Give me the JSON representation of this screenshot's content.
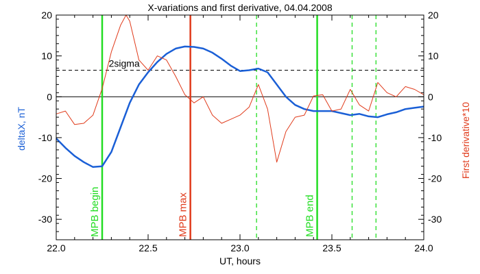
{
  "chart_data": {
    "type": "line",
    "title": "X-variations and first derivative, 04.04.2008",
    "xlabel": "UT, hours",
    "ylabel_left": "deltaX, nT",
    "ylabel_right": "First derivative*10",
    "xlim": [
      22.0,
      24.0
    ],
    "ylim": [
      -35,
      20
    ],
    "x_ticks": [
      "22.0",
      "22.5",
      "23.0",
      "23.5",
      "24.0"
    ],
    "y_ticks": [
      "-30",
      "-20",
      "-10",
      "0",
      "10",
      "20"
    ],
    "threshold": {
      "label": "2sigma",
      "value": 6.5
    },
    "colors": {
      "deltaX": "#1a5fd6",
      "derivative": "#e03a1a",
      "mpb_edge": "#22dd22",
      "mpb_max": "#e03a1a",
      "axis": "#000000"
    },
    "series": [
      {
        "name": "deltaX",
        "axis": "left",
        "x": [
          22.0,
          22.05,
          22.1,
          22.15,
          22.2,
          22.25,
          22.3,
          22.35,
          22.4,
          22.45,
          22.5,
          22.55,
          22.6,
          22.65,
          22.7,
          22.75,
          22.8,
          22.85,
          22.9,
          22.95,
          23.0,
          23.05,
          23.1,
          23.15,
          23.2,
          23.25,
          23.3,
          23.35,
          23.4,
          23.45,
          23.5,
          23.55,
          23.6,
          23.65,
          23.7,
          23.75,
          23.8,
          23.85,
          23.9,
          23.95,
          24.0
        ],
        "y": [
          -10.2,
          -12.5,
          -14.5,
          -16.0,
          -17.2,
          -17.0,
          -13.5,
          -7.5,
          -1.5,
          3.0,
          6.0,
          8.5,
          10.5,
          11.8,
          12.3,
          12.2,
          11.8,
          10.8,
          9.3,
          7.6,
          6.3,
          6.5,
          6.9,
          6.0,
          3.0,
          0.0,
          -2.0,
          -3.0,
          -3.5,
          -3.5,
          -3.5,
          -4.0,
          -4.5,
          -4.2,
          -4.8,
          -5.0,
          -4.3,
          -3.8,
          -3.0,
          -2.7,
          -2.4
        ]
      },
      {
        "name": "First derivative*10",
        "axis": "right",
        "x": [
          22.0,
          22.05,
          22.1,
          22.15,
          22.2,
          22.25,
          22.3,
          22.35,
          22.38,
          22.4,
          22.45,
          22.5,
          22.55,
          22.6,
          22.65,
          22.7,
          22.75,
          22.8,
          22.85,
          22.9,
          22.95,
          23.0,
          23.05,
          23.1,
          23.15,
          23.2,
          23.25,
          23.3,
          23.35,
          23.4,
          23.45,
          23.5,
          23.55,
          23.6,
          23.65,
          23.7,
          23.75,
          23.8,
          23.85,
          23.9,
          23.95,
          24.0
        ],
        "y": [
          -4.2,
          -3.5,
          -6.8,
          -6.5,
          -4.5,
          2.0,
          11.0,
          17.5,
          20.0,
          18.5,
          9.0,
          6.5,
          10.0,
          9.0,
          5.0,
          0.5,
          -1.5,
          0.0,
          -4.5,
          -6.5,
          -5.5,
          -4.5,
          -2.5,
          3.0,
          -3.0,
          -16.0,
          -8.5,
          -5.0,
          -4.5,
          0.2,
          0.5,
          -3.5,
          -3.0,
          1.8,
          -2.0,
          -3.5,
          3.5,
          1.0,
          0.0,
          2.5,
          1.8,
          0.5
        ]
      }
    ],
    "markers": [
      {
        "x": 22.25,
        "label": "MPB begin",
        "style": "solid",
        "color": "#22dd22"
      },
      {
        "x": 22.73,
        "label": "MPB max",
        "style": "solid",
        "color": "#e03a1a"
      },
      {
        "x": 23.09,
        "label": "",
        "style": "dashed",
        "color": "#22dd22"
      },
      {
        "x": 23.42,
        "label": "MPB end",
        "style": "solid",
        "color": "#22dd22"
      },
      {
        "x": 23.61,
        "label": "",
        "style": "dashed",
        "color": "#22dd22"
      },
      {
        "x": 23.74,
        "label": "",
        "style": "dashed",
        "color": "#22dd22"
      }
    ]
  }
}
